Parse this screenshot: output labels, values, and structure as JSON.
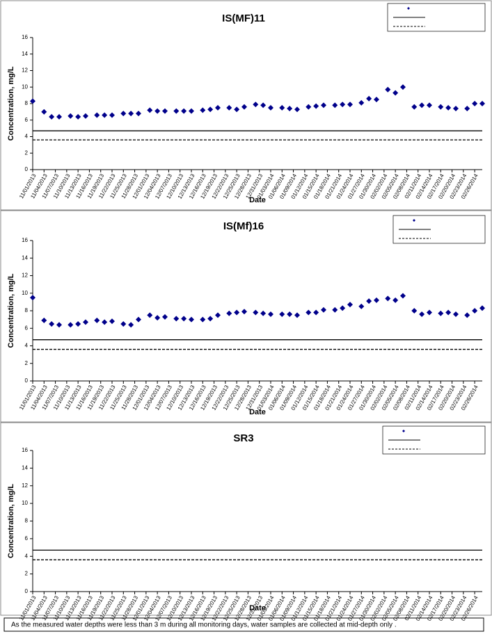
{
  "chart_data": [
    {
      "type": "scatter",
      "title": "IS(MF)11",
      "x_label": "Date",
      "y_label": "Concentration, mg/L",
      "xlim": [
        "11/01/2013",
        "02/28/2014"
      ],
      "xticks": [
        "11/01/2013",
        "11/04/2013",
        "11/07/2013",
        "11/10/2013",
        "11/13/2013",
        "11/16/2013",
        "11/19/2013",
        "11/22/2013",
        "11/25/2013",
        "11/28/2013",
        "12/01/2013",
        "12/04/2013",
        "12/07/2013",
        "12/10/2013",
        "12/13/2013",
        "12/16/2013",
        "12/19/2013",
        "12/22/2013",
        "12/25/2013",
        "12/28/2013",
        "12/31/2013",
        "01/03/2014",
        "01/06/2014",
        "01/09/2014",
        "01/12/2014",
        "01/15/2014",
        "01/18/2014",
        "01/21/2014",
        "01/24/2014",
        "01/27/2014",
        "01/30/2014",
        "02/02/2014",
        "02/05/2014",
        "02/08/2014",
        "02/11/2014",
        "02/14/2014",
        "02/17/2014",
        "02/20/2014",
        "02/23/2014",
        "02/26/2014"
      ],
      "ylim": [
        0,
        16
      ],
      "yticks": [
        0,
        2,
        4,
        6,
        8,
        10,
        12,
        14,
        16
      ],
      "x": [
        "11/01/2013",
        "11/04/2013",
        "11/06/2013",
        "11/08/2013",
        "11/11/2013",
        "11/13/2013",
        "11/15/2013",
        "11/18/2013",
        "11/20/2013",
        "11/22/2013",
        "11/25/2013",
        "11/27/2013",
        "11/29/2013",
        "12/02/2013",
        "12/04/2013",
        "12/06/2013",
        "12/09/2013",
        "12/11/2013",
        "12/13/2013",
        "12/16/2013",
        "12/18/2013",
        "12/20/2013",
        "12/23/2013",
        "12/25/2013",
        "12/27/2013",
        "12/30/2013",
        "01/01/2014",
        "01/03/2014",
        "01/06/2014",
        "01/08/2014",
        "01/10/2014",
        "01/13/2014",
        "01/15/2014",
        "01/17/2014",
        "01/20/2014",
        "01/22/2014",
        "01/24/2014",
        "01/27/2014",
        "01/29/2014",
        "01/31/2014",
        "02/03/2014",
        "02/05/2014",
        "02/07/2014",
        "02/10/2014",
        "02/12/2014",
        "02/14/2014",
        "02/17/2014",
        "02/19/2014",
        "02/21/2014",
        "02/24/2014",
        "02/26/2014",
        "02/28/2014"
      ],
      "series": [
        {
          "color": "#00008b",
          "values": [
            8.3,
            7.0,
            6.4,
            6.4,
            6.5,
            6.4,
            6.5,
            6.6,
            6.6,
            6.6,
            6.8,
            6.8,
            6.8,
            7.2,
            7.1,
            7.1,
            7.1,
            7.1,
            7.1,
            7.2,
            7.3,
            7.5,
            7.5,
            7.3,
            7.6,
            7.9,
            7.8,
            7.5,
            7.5,
            7.4,
            7.3,
            7.6,
            7.7,
            7.8,
            7.8,
            7.9,
            7.9,
            8.1,
            8.6,
            8.5,
            9.7,
            9.3,
            10.0,
            7.6,
            7.8,
            7.8,
            7.6,
            7.5,
            7.4,
            7.4,
            8.0,
            8.0
          ]
        }
      ],
      "hlines": [
        {
          "value": 4.7,
          "style": "solid",
          "color": "#000000"
        },
        {
          "value": 3.6,
          "style": "dashed",
          "color": "#000000"
        }
      ]
    },
    {
      "type": "scatter",
      "title": "IS(Mf)16",
      "x_label": "Date",
      "y_label": "Concentration, mg/L",
      "xlim": [
        "11/01/2013",
        "02/28/2014"
      ],
      "xticks": [
        "11/01/2013",
        "11/04/2013",
        "11/07/2013",
        "11/10/2013",
        "11/13/2013",
        "11/16/2013",
        "11/19/2013",
        "11/22/2013",
        "11/25/2013",
        "11/28/2013",
        "12/01/2013",
        "12/04/2013",
        "12/07/2013",
        "12/10/2013",
        "12/13/2013",
        "12/16/2013",
        "12/19/2013",
        "12/22/2013",
        "12/25/2013",
        "12/28/2013",
        "12/31/2013",
        "01/03/2014",
        "01/06/2014",
        "01/09/2014",
        "01/12/2014",
        "01/15/2014",
        "01/18/2014",
        "01/21/2014",
        "01/24/2014",
        "01/27/2014",
        "01/30/2014",
        "02/02/2014",
        "02/05/2014",
        "02/08/2014",
        "02/11/2014",
        "02/14/2014",
        "02/17/2014",
        "02/20/2014",
        "02/23/2014",
        "02/26/2014"
      ],
      "ylim": [
        0,
        16
      ],
      "yticks": [
        0,
        2,
        4,
        6,
        8,
        10,
        12,
        14,
        16
      ],
      "x": [
        "11/01/2013",
        "11/04/2013",
        "11/06/2013",
        "11/08/2013",
        "11/11/2013",
        "11/13/2013",
        "11/15/2013",
        "11/18/2013",
        "11/20/2013",
        "11/22/2013",
        "11/25/2013",
        "11/27/2013",
        "11/29/2013",
        "12/02/2013",
        "12/04/2013",
        "12/06/2013",
        "12/09/2013",
        "12/11/2013",
        "12/13/2013",
        "12/16/2013",
        "12/18/2013",
        "12/20/2013",
        "12/23/2013",
        "12/25/2013",
        "12/27/2013",
        "12/30/2013",
        "01/01/2014",
        "01/03/2014",
        "01/06/2014",
        "01/08/2014",
        "01/10/2014",
        "01/13/2014",
        "01/15/2014",
        "01/17/2014",
        "01/20/2014",
        "01/22/2014",
        "01/24/2014",
        "01/27/2014",
        "01/29/2014",
        "01/31/2014",
        "02/03/2014",
        "02/05/2014",
        "02/07/2014",
        "02/10/2014",
        "02/12/2014",
        "02/14/2014",
        "02/17/2014",
        "02/19/2014",
        "02/21/2014",
        "02/24/2014",
        "02/26/2014",
        "02/28/2014"
      ],
      "series": [
        {
          "color": "#00008b",
          "values": [
            9.5,
            6.9,
            6.5,
            6.4,
            6.4,
            6.5,
            6.7,
            6.9,
            6.7,
            6.8,
            6.5,
            6.4,
            7.0,
            7.5,
            7.2,
            7.3,
            7.1,
            7.1,
            7.0,
            7.0,
            7.1,
            7.5,
            7.7,
            7.8,
            7.9,
            7.8,
            7.7,
            7.6,
            7.6,
            7.6,
            7.5,
            7.8,
            7.8,
            8.1,
            8.1,
            8.3,
            8.7,
            8.5,
            9.1,
            9.2,
            9.4,
            9.2,
            9.7,
            8.0,
            7.6,
            7.8,
            7.7,
            7.8,
            7.6,
            7.5,
            8.0,
            8.3
          ]
        }
      ],
      "hlines": [
        {
          "value": 4.7,
          "style": "solid",
          "color": "#000000"
        },
        {
          "value": 3.6,
          "style": "dashed",
          "color": "#000000"
        }
      ]
    },
    {
      "type": "scatter",
      "title": "SR3",
      "x_label": "Date",
      "y_label": "Concentration, mg/L",
      "xlim": [
        "11/01/2013",
        "02/28/2014"
      ],
      "xticks": [
        "11/01/2013",
        "11/04/2013",
        "11/07/2013",
        "11/10/2013",
        "11/13/2013",
        "11/16/2013",
        "11/19/2013",
        "11/22/2013",
        "11/25/2013",
        "11/28/2013",
        "12/01/2013",
        "12/04/2013",
        "12/07/2013",
        "12/10/2013",
        "12/13/2013",
        "12/16/2013",
        "12/19/2013",
        "12/22/2013",
        "12/25/2013",
        "12/28/2013",
        "12/31/2013",
        "01/03/2014",
        "01/06/2014",
        "01/09/2014",
        "01/12/2014",
        "01/15/2014",
        "01/18/2014",
        "01/21/2014",
        "01/24/2014",
        "01/27/2014",
        "01/30/2014",
        "02/02/2014",
        "02/05/2014",
        "02/08/2014",
        "02/11/2014",
        "02/14/2014",
        "02/17/2014",
        "02/20/2014",
        "02/23/2014",
        "02/26/2014"
      ],
      "ylim": [
        0,
        16
      ],
      "yticks": [
        0,
        2,
        4,
        6,
        8,
        10,
        12,
        14,
        16
      ],
      "x": [],
      "series": [
        {
          "color": "#00008b",
          "values": []
        }
      ],
      "hlines": [
        {
          "value": 4.7,
          "style": "solid",
          "color": "#000000"
        },
        {
          "value": 3.6,
          "style": "dashed",
          "color": "#000000"
        }
      ]
    }
  ],
  "note": "As the measured water depths were less than 3 m during all monitoring days, water samples are collected  at mid-depth only ."
}
